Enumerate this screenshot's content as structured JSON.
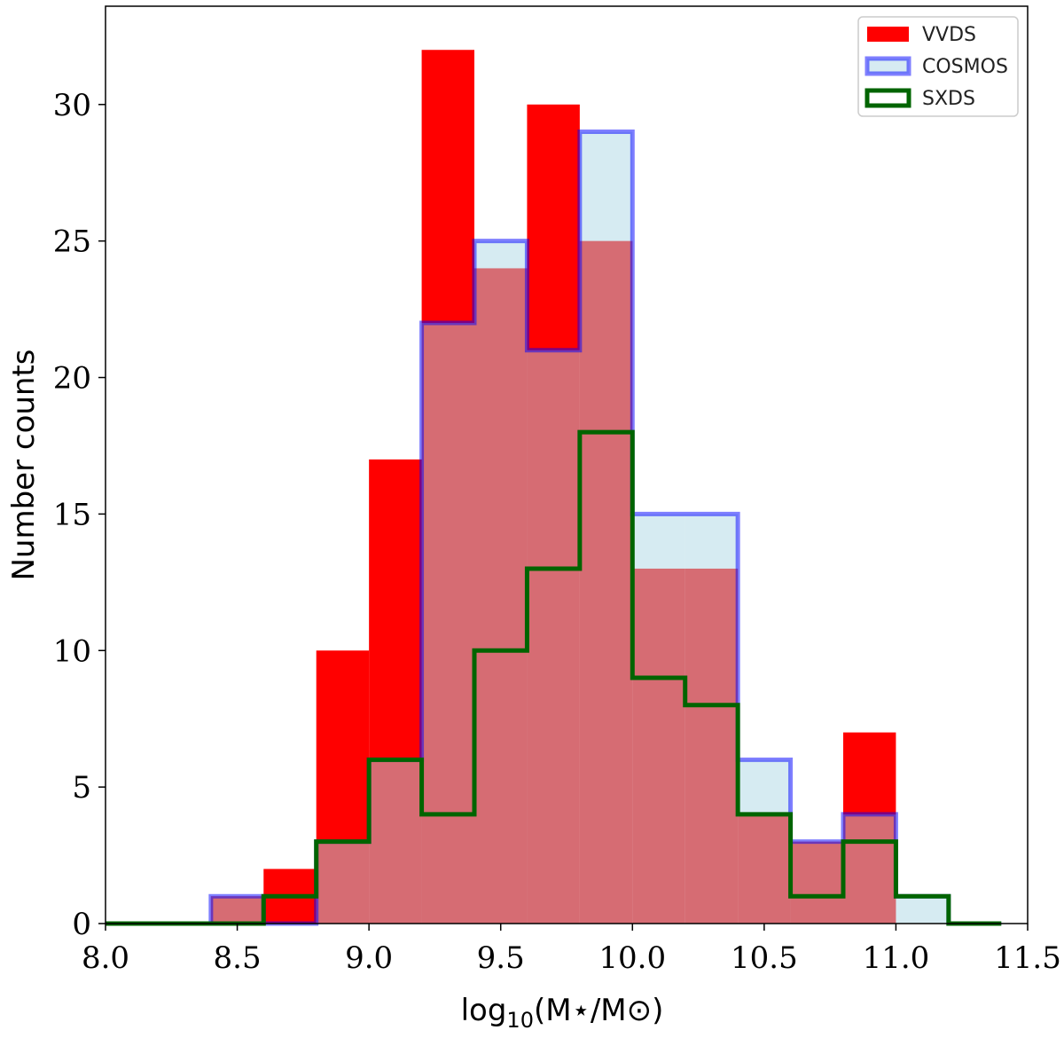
{
  "chart_data": {
    "type": "histogram",
    "xlabel": "log10(M⋆/M⊙)",
    "xlabel_parts": {
      "log": "log",
      "sub": "10",
      "rest": "(M⋆/M⊙)"
    },
    "ylabel": "Number counts",
    "xlim": [
      8.0,
      11.5
    ],
    "ylim": [
      0,
      33.6
    ],
    "xticks": [
      8.0,
      8.5,
      9.0,
      9.5,
      10.0,
      10.5,
      11.0,
      11.5
    ],
    "xtick_labels": [
      "8.0",
      "8.5",
      "9.0",
      "9.5",
      "10.0",
      "10.5",
      "11.0",
      "11.5"
    ],
    "yticks": [
      0,
      5,
      10,
      15,
      20,
      25,
      30
    ],
    "ytick_labels": [
      "0",
      "5",
      "10",
      "15",
      "20",
      "25",
      "30"
    ],
    "grid": false,
    "legend_placement": "top-right",
    "bin_edges": [
      8.0,
      8.2,
      8.4,
      8.6,
      8.8,
      9.0,
      9.2,
      9.4,
      9.6,
      9.8,
      10.0,
      10.2,
      10.4,
      10.6,
      10.8,
      11.0,
      11.2,
      11.4
    ],
    "series": [
      {
        "name": "VVDS",
        "style": "filled",
        "color": "#ff0000",
        "values": [
          0,
          0,
          1,
          2,
          10,
          17,
          32,
          24,
          30,
          25,
          13,
          13,
          4,
          3,
          7,
          0,
          0
        ]
      },
      {
        "name": "COSMOS",
        "style": "filled-edge",
        "color": "#add8e6",
        "edge_color": "#0000ff",
        "values": [
          0,
          0,
          1,
          0,
          3,
          6,
          22,
          25,
          21,
          29,
          15,
          15,
          6,
          3,
          4,
          1,
          0
        ]
      },
      {
        "name": "SXDS",
        "style": "step",
        "color": "#006400",
        "values": [
          0,
          0,
          0,
          1,
          3,
          6,
          4,
          10,
          13,
          18,
          9,
          8,
          4,
          1,
          3,
          1,
          0
        ]
      }
    ]
  }
}
